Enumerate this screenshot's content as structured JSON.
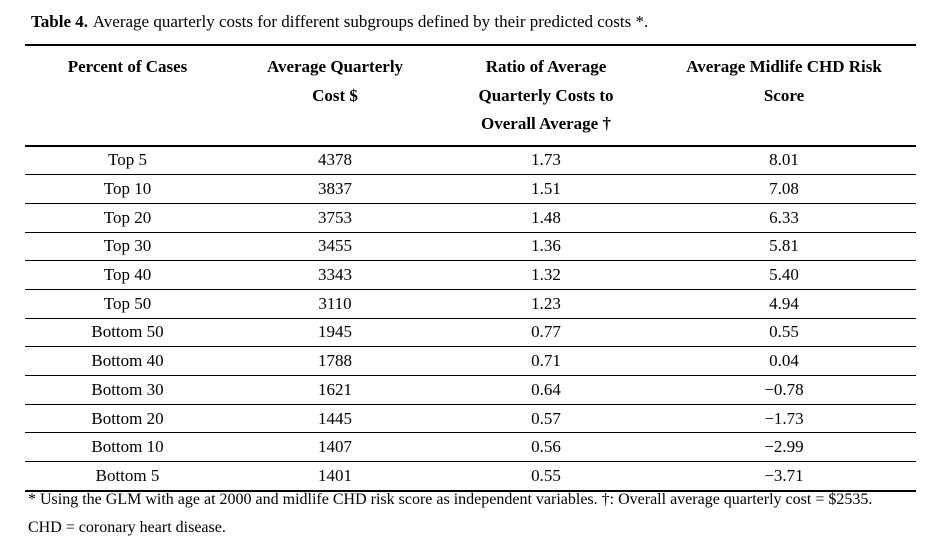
{
  "title": {
    "label": "Table 4.",
    "text": "Average quarterly costs for different subgroups defined by their predicted costs *."
  },
  "table": {
    "columns": [
      {
        "id": "percent-of-cases",
        "lines": [
          "Percent of Cases"
        ]
      },
      {
        "id": "average-quarterly-cost",
        "lines": [
          "Average Quarterly",
          "Cost $"
        ]
      },
      {
        "id": "ratio-to-overall-average",
        "lines": [
          "Ratio of Average",
          "Quarterly Costs to",
          "Overall Average †"
        ]
      },
      {
        "id": "average-midlife-chd-risk-score",
        "lines": [
          "Average Midlife CHD Risk",
          "Score"
        ]
      }
    ],
    "rows": [
      {
        "cells": [
          "Top 5",
          "4378",
          "1.73",
          "8.01"
        ]
      },
      {
        "cells": [
          "Top 10",
          "3837",
          "1.51",
          "7.08"
        ]
      },
      {
        "cells": [
          "Top 20",
          "3753",
          "1.48",
          "6.33"
        ]
      },
      {
        "cells": [
          "Top 30",
          "3455",
          "1.36",
          "5.81"
        ]
      },
      {
        "cells": [
          "Top 40",
          "3343",
          "1.32",
          "5.40"
        ]
      },
      {
        "cells": [
          "Top 50",
          "3110",
          "1.23",
          "4.94"
        ]
      },
      {
        "cells": [
          "Bottom 50",
          "1945",
          "0.77",
          "0.55"
        ]
      },
      {
        "cells": [
          "Bottom 40",
          "1788",
          "0.71",
          "0.04"
        ]
      },
      {
        "cells": [
          "Bottom 30",
          "1621",
          "0.64",
          "−0.78"
        ]
      },
      {
        "cells": [
          "Bottom 20",
          "1445",
          "0.57",
          "−1.73"
        ]
      },
      {
        "cells": [
          "Bottom 10",
          "1407",
          "0.56",
          "−2.99"
        ]
      },
      {
        "cells": [
          "Bottom 5",
          "1401",
          "0.55",
          "−3.71"
        ]
      }
    ]
  },
  "footnotes": [
    "* Using the GLM with age at 2000 and midlife CHD risk score as independent variables. †: Overall average quarterly cost = $2535.",
    "CHD = coronary heart disease."
  ],
  "colors": {
    "text": "#000000",
    "background": "#ffffff",
    "rule": "#000000"
  }
}
